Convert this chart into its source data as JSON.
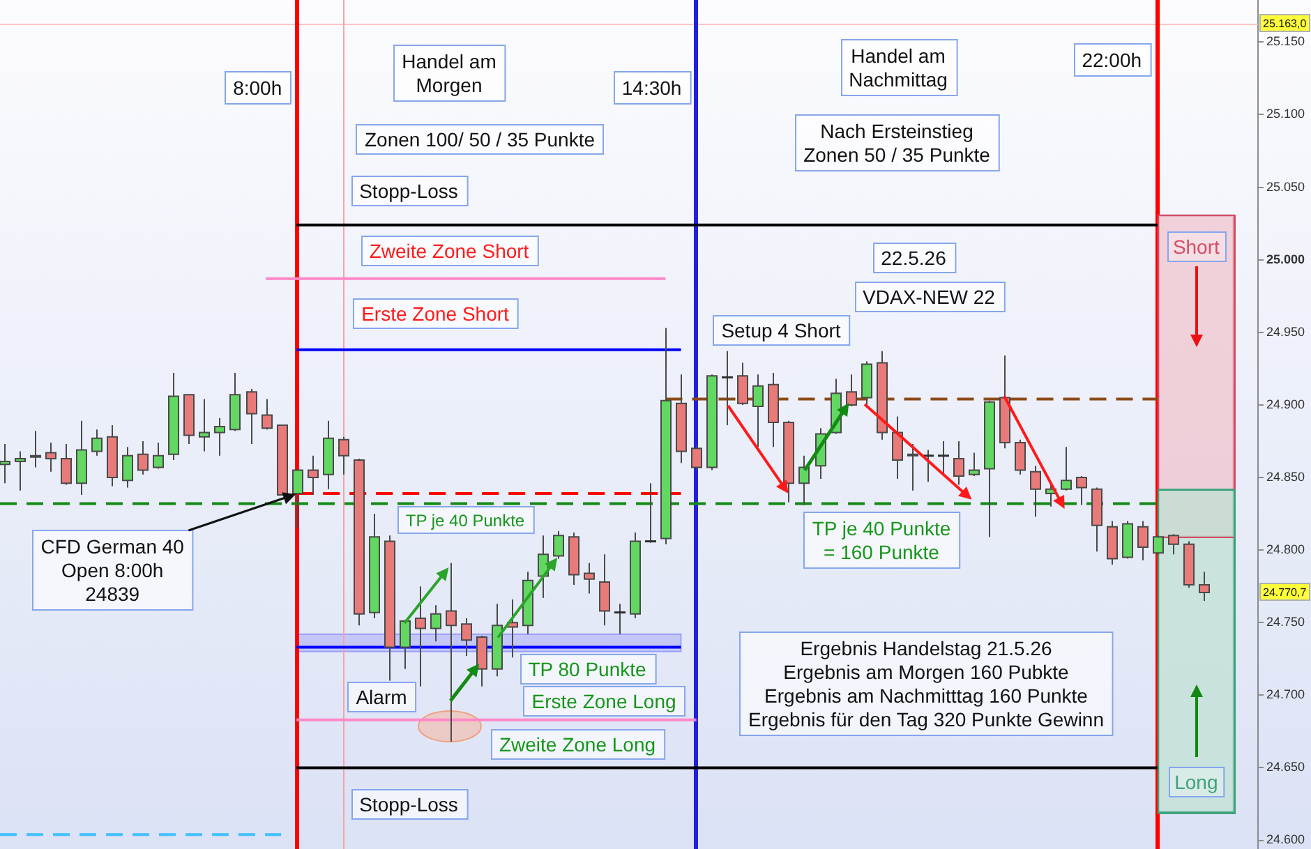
{
  "chart_data": {
    "type": "candlestick",
    "xlim": [
      3.18,
      23.63
    ],
    "ylim": [
      24594,
      25179
    ],
    "yticks": [
      {
        "value": 24600,
        "label": "24.600"
      },
      {
        "value": 24650,
        "label": "24.650"
      },
      {
        "value": 24700,
        "label": "24.700"
      },
      {
        "value": 24750,
        "label": "24.750"
      },
      {
        "value": 24800,
        "label": "24.800"
      },
      {
        "value": 24850,
        "label": "24.850"
      },
      {
        "value": 24900,
        "label": "24.900"
      },
      {
        "value": 24950,
        "label": "24.950"
      },
      {
        "value": 25000,
        "label": "25.000"
      },
      {
        "value": 25050,
        "label": "25.050"
      },
      {
        "value": 25100,
        "label": "25.100"
      },
      {
        "value": 25150,
        "label": "25.150"
      }
    ],
    "tick_labels": "y",
    "series": [
      {
        "x": [
          3.25,
          3.5,
          3.75,
          4,
          4.25,
          4.5,
          4.75,
          5,
          5.25,
          5.5,
          5.75,
          6,
          6.25,
          6.5,
          6.75,
          7,
          7.25,
          7.5,
          7.75,
          8,
          8.25,
          8.5,
          8.75,
          9,
          9.25,
          9.5,
          9.75,
          10,
          10.25,
          10.5,
          10.75,
          11,
          11.25,
          11.5,
          11.75,
          12,
          12.25,
          12.5,
          12.75,
          13,
          13.25,
          13.5,
          13.75,
          14,
          14.25,
          14.5,
          14.75,
          15,
          15.25,
          15.5,
          15.75,
          16,
          16.25,
          16.5,
          16.75,
          17,
          17.25,
          17.5,
          17.75,
          18,
          18.25,
          18.5,
          18.75,
          19,
          19.25,
          19.5,
          19.75,
          20,
          20.25,
          20.5,
          20.75,
          21,
          21.25,
          21.5,
          21.75,
          22,
          22.25,
          22.5,
          22.75
        ],
        "ohlc": [
          [
            24859,
            24873,
            24846,
            24861
          ],
          [
            24861,
            24868,
            24841,
            24863
          ],
          [
            24864,
            24882,
            24857,
            24865
          ],
          [
            24867,
            24874,
            24854,
            24863
          ],
          [
            24863,
            24873,
            24845,
            24846
          ],
          [
            24846,
            24889,
            24838,
            24869
          ],
          [
            24868,
            24883,
            24865,
            24877
          ],
          [
            24878,
            24886,
            24844,
            24850
          ],
          [
            24848,
            24871,
            24843,
            24865
          ],
          [
            24866,
            24875,
            24852,
            24855
          ],
          [
            24857,
            24874,
            24856,
            24865
          ],
          [
            24866,
            24922,
            24862,
            24906
          ],
          [
            24907,
            24907,
            24873,
            24879
          ],
          [
            24878,
            24904,
            24868,
            24881
          ],
          [
            24881,
            24891,
            24865,
            24885
          ],
          [
            24883,
            24922,
            24882,
            24907
          ],
          [
            24909,
            24911,
            24873,
            24894
          ],
          [
            24893,
            24904,
            24883,
            24884
          ],
          [
            24886,
            24886,
            24838,
            24838
          ],
          [
            24839,
            24855,
            24815,
            24855
          ],
          [
            24855,
            24865,
            24838,
            24850
          ],
          [
            24852,
            24889,
            24842,
            24877
          ],
          [
            24876,
            24878,
            24852,
            24865
          ],
          [
            24862,
            24863,
            24748,
            24756
          ],
          [
            24757,
            24825,
            24753,
            24809
          ],
          [
            24806,
            24810,
            24710,
            24733
          ],
          [
            24733,
            24752,
            24718,
            24751
          ],
          [
            24753,
            24775,
            24706,
            24746
          ],
          [
            24746,
            24762,
            24737,
            24756
          ],
          [
            24758,
            24791,
            24668,
            24748
          ],
          [
            24749,
            24753,
            24727,
            24738
          ],
          [
            24740,
            24741,
            24706,
            24718
          ],
          [
            24718,
            24763,
            24713,
            24748
          ],
          [
            24750,
            24766,
            24726,
            24747
          ],
          [
            24748,
            24785,
            24742,
            24779
          ],
          [
            24782,
            24810,
            24767,
            24797
          ],
          [
            24796,
            24813,
            24794,
            24810
          ],
          [
            24809,
            24812,
            24776,
            24783
          ],
          [
            24784,
            24791,
            24770,
            24780
          ],
          [
            24778,
            24797,
            24748,
            24758
          ],
          [
            24757,
            24763,
            24742,
            24757
          ],
          [
            24756,
            24812,
            24753,
            24806
          ],
          [
            24806,
            24846,
            24805,
            24806
          ],
          [
            24808,
            24953,
            24804,
            24903
          ],
          [
            24901,
            24921,
            24860,
            24868
          ],
          [
            24870,
            24872,
            24855,
            24857
          ],
          [
            24857,
            24921,
            24855,
            24920
          ],
          [
            24919,
            24937,
            24886,
            24919
          ],
          [
            24920,
            24929,
            24900,
            24901
          ],
          [
            24899,
            24921,
            24871,
            24913
          ],
          [
            24914,
            24922,
            24871,
            24888
          ],
          [
            24888,
            24889,
            24833,
            24846
          ],
          [
            24846,
            24865,
            24831,
            24857
          ],
          [
            24858,
            24884,
            24849,
            24880
          ],
          [
            24881,
            24918,
            24880,
            24908
          ],
          [
            24909,
            24921,
            24899,
            24900
          ],
          [
            24905,
            24930,
            24900,
            24928
          ],
          [
            24929,
            24937,
            24876,
            24881
          ],
          [
            24881,
            24892,
            24849,
            24862
          ],
          [
            24865,
            24873,
            24841,
            24866
          ],
          [
            24865,
            24869,
            24847,
            24865
          ],
          [
            24865,
            24875,
            24852,
            24865
          ],
          [
            24863,
            24875,
            24845,
            24851
          ],
          [
            24852,
            24867,
            24851,
            24855
          ],
          [
            24856,
            24903,
            24809,
            24902
          ],
          [
            24905,
            24934,
            24870,
            24874
          ],
          [
            24874,
            24876,
            24852,
            24855
          ],
          [
            24854,
            24858,
            24823,
            24842
          ],
          [
            24839,
            24847,
            24830,
            24842
          ],
          [
            24842,
            24871,
            24841,
            24848
          ],
          [
            24850,
            24851,
            24831,
            24843
          ],
          [
            24842,
            24843,
            24799,
            24817
          ],
          [
            24816,
            24820,
            24790,
            24794
          ],
          [
            24795,
            24820,
            24794,
            24818
          ],
          [
            24816,
            24820,
            24793,
            24802
          ],
          [
            24798,
            24810,
            24797,
            24809
          ],
          [
            24810,
            24811,
            24797,
            24804
          ],
          [
            24804,
            24806,
            24774,
            24776
          ],
          [
            24776,
            24785,
            24765,
            24770.7
          ]
        ],
        "colors": [
          "#62d862",
          "#62d862",
          "#62d862",
          "#e97a7a",
          "#e97a7a",
          "#62d862",
          "#62d862",
          "#e97a7a",
          "#62d862",
          "#e97a7a",
          "#62d862",
          "#62d862",
          "#e97a7a",
          "#62d862",
          "#62d862",
          "#62d862",
          "#e97a7a",
          "#e97a7a",
          "#e97a7a",
          "#62d862",
          "#e97a7a",
          "#62d862",
          "#e97a7a",
          "#e97a7a",
          "#62d862",
          "#e97a7a",
          "#62d862",
          "#e97a7a",
          "#62d862",
          "#e97a7a",
          "#e97a7a",
          "#e97a7a",
          "#62d862",
          "#e97a7a",
          "#62d862",
          "#62d862",
          "#62d862",
          "#e97a7a",
          "#e97a7a",
          "#e97a7a",
          "#2e2e2e",
          "#62d862",
          "#2e2e2e",
          "#62d862",
          "#e97a7a",
          "#e97a7a",
          "#62d862",
          "#2e2e2e",
          "#e97a7a",
          "#62d862",
          "#e97a7a",
          "#e97a7a",
          "#62d862",
          "#62d862",
          "#62d862",
          "#e97a7a",
          "#62d862",
          "#e97a7a",
          "#e97a7a",
          "#62d862",
          "#2e2e2e",
          "#2e2e2e",
          "#e97a7a",
          "#62d862",
          "#62d862",
          "#e97a7a",
          "#e97a7a",
          "#e97a7a",
          "#62d862",
          "#62d862",
          "#e97a7a",
          "#e97a7a",
          "#e97a7a",
          "#62d862",
          "#e97a7a",
          "#62d862",
          "#e97a7a",
          "#e97a7a",
          "#e97a7a"
        ]
      },
      {
        "type": "line",
        "x": [
          8,
          22
        ],
        "values": [
          25024,
          25024
        ],
        "color": "#000000"
      },
      {
        "type": "line",
        "x": [
          7.5,
          14
        ],
        "values": [
          24987,
          24987
        ],
        "color": "#ff88c8"
      },
      {
        "type": "line",
        "x": [
          8,
          14.25
        ],
        "values": [
          24938,
          24938
        ],
        "color": "#0000ff"
      },
      {
        "type": "line",
        "x": [
          8,
          14.25
        ],
        "values": [
          24839,
          24839
        ],
        "color": "#ff0000",
        "line_style": "dashed"
      },
      {
        "type": "line",
        "x": [
          3.18,
          22
        ],
        "values": [
          24832,
          24832
        ],
        "color": "#148a14",
        "line_style": "dashed"
      },
      {
        "type": "line",
        "x": [
          14,
          22
        ],
        "values": [
          24904,
          24904
        ],
        "color": "#8b4a14",
        "line_style": "dashed"
      },
      {
        "type": "line",
        "x": [
          8,
          14.25
        ],
        "values": [
          24733,
          24733
        ],
        "lower": [
          24730,
          24730
        ],
        "upper": [
          24742,
          24742
        ],
        "color": "#0000ff"
      },
      {
        "type": "line",
        "x": [
          8,
          14.5
        ],
        "values": [
          24683,
          24683
        ],
        "color": "#ff88c8"
      },
      {
        "type": "line",
        "x": [
          8,
          22
        ],
        "values": [
          24650,
          24650
        ],
        "color": "#000000"
      },
      {
        "type": "line",
        "x": [
          3.18,
          7.75
        ],
        "values": [
          24604,
          24604
        ],
        "color": "#40c0ff",
        "line_style": "dashed"
      },
      {
        "type": "bar",
        "name": "Short",
        "x": [
          22.625
        ],
        "base": [
          24809
        ],
        "values": [
          222
        ],
        "color": "#f0c4cc"
      },
      {
        "type": "bar",
        "name": "Long",
        "x": [
          22.625
        ],
        "base": [
          24619
        ],
        "values": [
          223
        ],
        "color": "#bfe0d3"
      }
    ],
    "ref_lines": [
      {
        "axis": "y",
        "value": 25163,
        "label": "25.163,0",
        "color": "#ffc4c4"
      },
      {
        "axis": "x",
        "value": 8,
        "label": "8:00h",
        "color": "#ff0000"
      },
      {
        "axis": "x",
        "value": 8.75,
        "color": "#f4a4a4"
      },
      {
        "axis": "x",
        "value": 14.5,
        "label": "14:30h",
        "color": "#2020dd"
      },
      {
        "axis": "x",
        "value": 22,
        "label": "22:00h",
        "color": "#ff0000"
      }
    ],
    "annotations": [
      "Handel am\nMorgen",
      "Zonen 100/ 50 / 35 Punkte",
      "Stopp-Loss",
      "Zweite Zone Short",
      "Erste Zone Short",
      "Handel am\nNachmittag",
      "Nach Ersteinstieg\nZonen 50 / 35 Punkte",
      "22.5.26",
      "VDAX-NEW 22",
      "Setup 4 Short",
      {
        "text": "CFD German 40\nOpen 8:00h\n24839",
        "x": 8,
        "y": 24839
      },
      "TP je 40 Punkte",
      "TP je 40 Punkte\n= 160 Punkte",
      "TP 80 Punkte",
      "Erste Zone Long",
      "Alarm",
      "Zweite Zone Long",
      "Ergebnis Handelstag 21.5.26\nErgebnis am Morgen 160 Pubkte\nErgebnis am Nachmitttag 160 Punkte\nErgebnis für den Tag 320 Punkte Gewinn",
      "Stopp-Loss",
      "24.770,7"
    ]
  }
}
